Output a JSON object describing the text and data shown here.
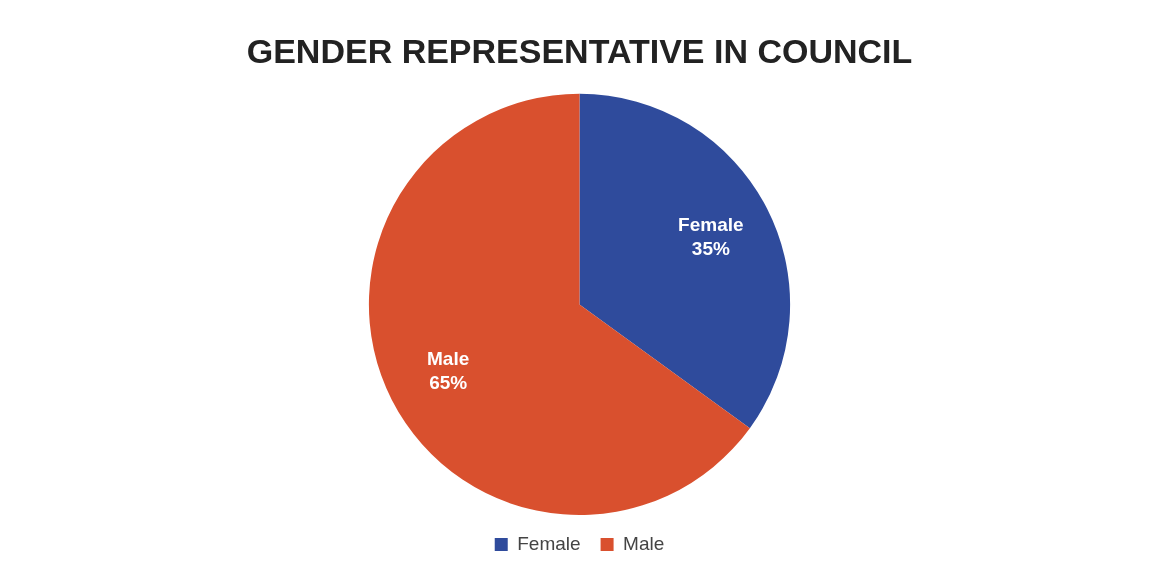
{
  "chart_data": {
    "type": "pie",
    "title": "GENDER REPRESENTATIVE IN COUNCIL",
    "categories": [
      "Female",
      "Male"
    ],
    "values": [
      35,
      65
    ],
    "colors": [
      "#2f4b9c",
      "#d9502e"
    ],
    "value_labels": [
      "35%",
      "65%"
    ],
    "legend": "bottom"
  }
}
